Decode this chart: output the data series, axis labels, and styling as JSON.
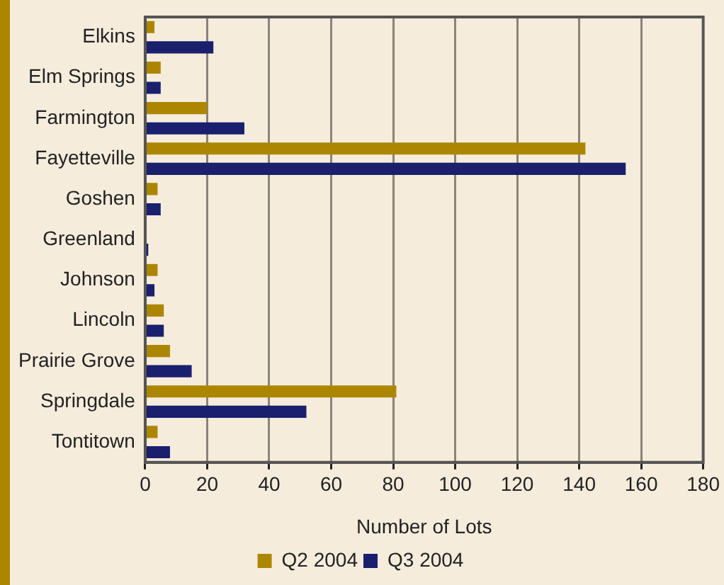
{
  "chart_data": {
    "type": "bar",
    "orientation": "horizontal",
    "xlabel": "Number of Lots",
    "categories": [
      "Elkins",
      "Elm Springs",
      "Farmington",
      "Fayetteville",
      "Goshen",
      "Greenland",
      "Johnson",
      "Lincoln",
      "Prairie Grove",
      "Springdale",
      "Tontitown"
    ],
    "series": [
      {
        "name": "Q2 2004",
        "color": "#ad8600",
        "values": [
          3,
          5,
          20,
          142,
          4,
          0,
          4,
          6,
          8,
          81,
          4
        ]
      },
      {
        "name": "Q3 2004",
        "color": "#1a1f6e",
        "values": [
          22,
          5,
          32,
          155,
          5,
          1,
          3,
          6,
          15,
          52,
          8
        ]
      }
    ],
    "xlim": [
      0,
      180
    ],
    "xticks": [
      0,
      20,
      40,
      60,
      80,
      100,
      120,
      140,
      160,
      180
    ],
    "grid": "x",
    "legend": "bottom"
  }
}
